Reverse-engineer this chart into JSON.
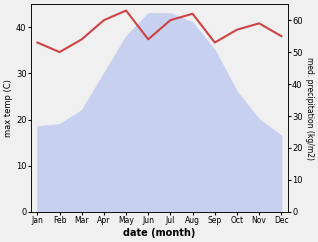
{
  "months": [
    "Jan",
    "Feb",
    "Mar",
    "Apr",
    "May",
    "Jun",
    "Jul",
    "Aug",
    "Sep",
    "Oct",
    "Nov",
    "Dec"
  ],
  "temperature": [
    18.5,
    19,
    22,
    30,
    38,
    43,
    43,
    41,
    35,
    26,
    20,
    16.5
  ],
  "precipitation": [
    53,
    50,
    54,
    60,
    63,
    54,
    60,
    62,
    53,
    57,
    59,
    55
  ],
  "temp_fill_color": "#c8d0f0",
  "precip_line_color": "#cc4444",
  "ylabel_left": "max temp (C)",
  "ylabel_right": "med. precipitation (kg/m2)",
  "xlabel": "date (month)",
  "ylim_left": [
    0,
    45
  ],
  "ylim_right": [
    0,
    65
  ],
  "yticks_left": [
    0,
    10,
    20,
    30,
    40
  ],
  "yticks_right": [
    0,
    10,
    20,
    30,
    40,
    50,
    60
  ],
  "background_color": "#f0f0f0"
}
